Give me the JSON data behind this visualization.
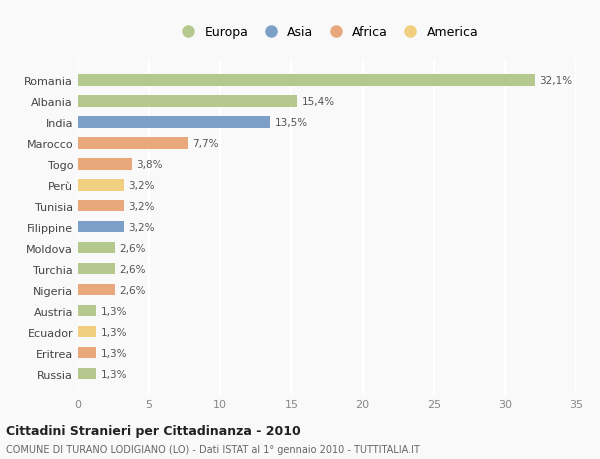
{
  "countries": [
    "Romania",
    "Albania",
    "India",
    "Marocco",
    "Togo",
    "Perù",
    "Tunisia",
    "Filippine",
    "Moldova",
    "Turchia",
    "Nigeria",
    "Austria",
    "Ecuador",
    "Eritrea",
    "Russia"
  ],
  "values": [
    32.1,
    15.4,
    13.5,
    7.7,
    3.8,
    3.2,
    3.2,
    3.2,
    2.6,
    2.6,
    2.6,
    1.3,
    1.3,
    1.3,
    1.3
  ],
  "labels": [
    "32,1%",
    "15,4%",
    "13,5%",
    "7,7%",
    "3,8%",
    "3,2%",
    "3,2%",
    "3,2%",
    "2,6%",
    "2,6%",
    "2,6%",
    "1,3%",
    "1,3%",
    "1,3%",
    "1,3%"
  ],
  "colors": [
    "#b5c98e",
    "#b5c98e",
    "#7b9fc7",
    "#e8a87c",
    "#e8a87c",
    "#f0d080",
    "#e8a87c",
    "#7b9fc7",
    "#b5c98e",
    "#b5c98e",
    "#e8a87c",
    "#b5c98e",
    "#f0d080",
    "#e8a87c",
    "#b5c98e"
  ],
  "legend_labels": [
    "Europa",
    "Asia",
    "Africa",
    "America"
  ],
  "legend_colors": [
    "#b5c98e",
    "#7b9fc7",
    "#e8a87c",
    "#f0d080"
  ],
  "title": "Cittadini Stranieri per Cittadinanza - 2010",
  "subtitle": "COMUNE DI TURANO LODIGIANO (LO) - Dati ISTAT al 1° gennaio 2010 - TUTTITALIA.IT",
  "xlim": [
    0,
    35
  ],
  "xticks": [
    0,
    5,
    10,
    15,
    20,
    25,
    30,
    35
  ],
  "background_color": "#f9f9f9",
  "grid_color": "#ffffff",
  "bar_height": 0.55
}
